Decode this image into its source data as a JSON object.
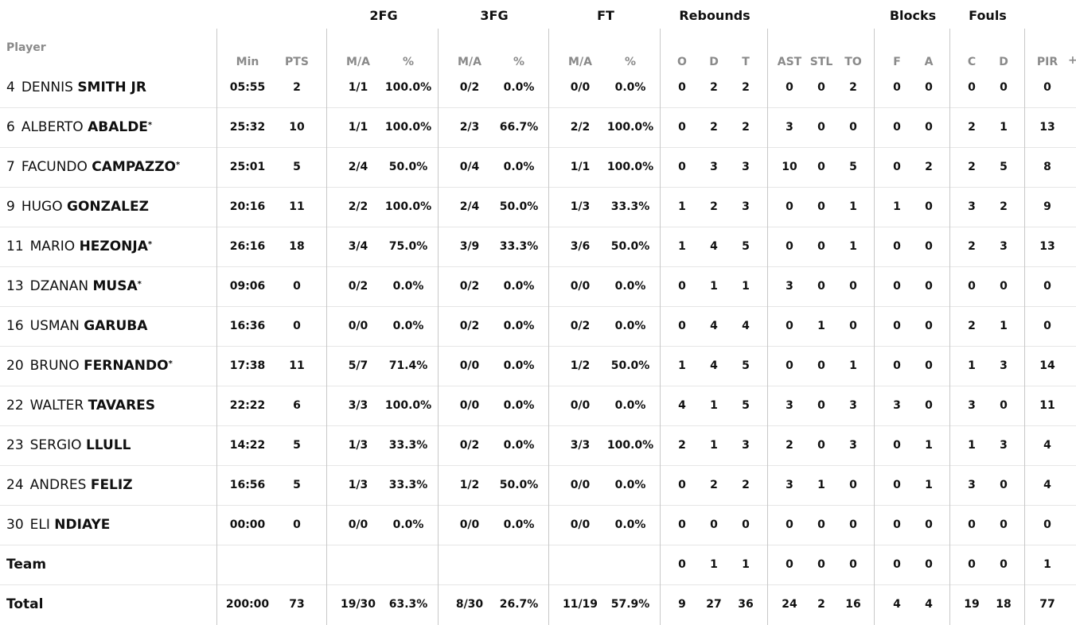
{
  "group_headers": [
    "2FG",
    "3FG",
    "FT",
    "Rebounds",
    "Blocks",
    "Fouls"
  ],
  "player_header": "Player",
  "columns": [
    "Min",
    "PTS",
    "M/A",
    "%",
    "M/A",
    "%",
    "M/A",
    "%",
    "O",
    "D",
    "T",
    "AST",
    "STL",
    "TO",
    "F",
    "A",
    "C",
    "D",
    "PIR"
  ],
  "plus_label": "+",
  "rows": [
    {
      "num": "4",
      "first": "DENNIS",
      "last": "SMITH JR",
      "star": "",
      "stats": [
        "05:55",
        "2",
        "1/1",
        "100.0%",
        "0/2",
        "0.0%",
        "0/0",
        "0.0%",
        "0",
        "2",
        "2",
        "0",
        "0",
        "2",
        "0",
        "0",
        "0",
        "0",
        "0"
      ]
    },
    {
      "num": "6",
      "first": "ALBERTO",
      "last": "ABALDE",
      "star": "*",
      "stats": [
        "25:32",
        "10",
        "1/1",
        "100.0%",
        "2/3",
        "66.7%",
        "2/2",
        "100.0%",
        "0",
        "2",
        "2",
        "3",
        "0",
        "0",
        "0",
        "0",
        "2",
        "1",
        "13"
      ]
    },
    {
      "num": "7",
      "first": "FACUNDO",
      "last": "CAMPAZZO",
      "star": "*",
      "stats": [
        "25:01",
        "5",
        "2/4",
        "50.0%",
        "0/4",
        "0.0%",
        "1/1",
        "100.0%",
        "0",
        "3",
        "3",
        "10",
        "0",
        "5",
        "0",
        "2",
        "2",
        "5",
        "8"
      ]
    },
    {
      "num": "9",
      "first": "HUGO",
      "last": "GONZALEZ",
      "star": "",
      "stats": [
        "20:16",
        "11",
        "2/2",
        "100.0%",
        "2/4",
        "50.0%",
        "1/3",
        "33.3%",
        "1",
        "2",
        "3",
        "0",
        "0",
        "1",
        "1",
        "0",
        "3",
        "2",
        "9"
      ]
    },
    {
      "num": "11",
      "first": "MARIO",
      "last": "HEZONJA",
      "star": "*",
      "stats": [
        "26:16",
        "18",
        "3/4",
        "75.0%",
        "3/9",
        "33.3%",
        "3/6",
        "50.0%",
        "1",
        "4",
        "5",
        "0",
        "0",
        "1",
        "0",
        "0",
        "2",
        "3",
        "13"
      ]
    },
    {
      "num": "13",
      "first": "DZANAN",
      "last": "MUSA",
      "star": "*",
      "stats": [
        "09:06",
        "0",
        "0/2",
        "0.0%",
        "0/2",
        "0.0%",
        "0/0",
        "0.0%",
        "0",
        "1",
        "1",
        "3",
        "0",
        "0",
        "0",
        "0",
        "0",
        "0",
        "0"
      ]
    },
    {
      "num": "16",
      "first": "USMAN",
      "last": "GARUBA",
      "star": "",
      "stats": [
        "16:36",
        "0",
        "0/0",
        "0.0%",
        "0/2",
        "0.0%",
        "0/2",
        "0.0%",
        "0",
        "4",
        "4",
        "0",
        "1",
        "0",
        "0",
        "0",
        "2",
        "1",
        "0"
      ]
    },
    {
      "num": "20",
      "first": "BRUNO",
      "last": "FERNANDO",
      "star": "*",
      "stats": [
        "17:38",
        "11",
        "5/7",
        "71.4%",
        "0/0",
        "0.0%",
        "1/2",
        "50.0%",
        "1",
        "4",
        "5",
        "0",
        "0",
        "1",
        "0",
        "0",
        "1",
        "3",
        "14"
      ]
    },
    {
      "num": "22",
      "first": "WALTER",
      "last": "TAVARES",
      "star": "",
      "stats": [
        "22:22",
        "6",
        "3/3",
        "100.0%",
        "0/0",
        "0.0%",
        "0/0",
        "0.0%",
        "4",
        "1",
        "5",
        "3",
        "0",
        "3",
        "3",
        "0",
        "3",
        "0",
        "11"
      ]
    },
    {
      "num": "23",
      "first": "SERGIO",
      "last": "LLULL",
      "star": "",
      "stats": [
        "14:22",
        "5",
        "1/3",
        "33.3%",
        "0/2",
        "0.0%",
        "3/3",
        "100.0%",
        "2",
        "1",
        "3",
        "2",
        "0",
        "3",
        "0",
        "1",
        "1",
        "3",
        "4"
      ]
    },
    {
      "num": "24",
      "first": "ANDRES",
      "last": "FELIZ",
      "star": "",
      "stats": [
        "16:56",
        "5",
        "1/3",
        "33.3%",
        "1/2",
        "50.0%",
        "0/0",
        "0.0%",
        "0",
        "2",
        "2",
        "3",
        "1",
        "0",
        "0",
        "1",
        "3",
        "0",
        "4"
      ]
    },
    {
      "num": "30",
      "first": "ELI",
      "last": "NDIAYE",
      "star": "",
      "stats": [
        "00:00",
        "0",
        "0/0",
        "0.0%",
        "0/0",
        "0.0%",
        "0/0",
        "0.0%",
        "0",
        "0",
        "0",
        "0",
        "0",
        "0",
        "0",
        "0",
        "0",
        "0",
        "0"
      ]
    }
  ],
  "team_row": {
    "label": "Team",
    "stats": [
      "",
      "",
      "",
      "",
      "",
      "",
      "",
      "",
      "0",
      "1",
      "1",
      "0",
      "0",
      "0",
      "0",
      "0",
      "0",
      "0",
      "1"
    ]
  },
  "total_row": {
    "label": "Total",
    "stats": [
      "200:00",
      "73",
      "19/30",
      "63.3%",
      "8/30",
      "26.7%",
      "11/19",
      "57.9%",
      "9",
      "27",
      "36",
      "24",
      "2",
      "16",
      "4",
      "4",
      "19",
      "18",
      "77"
    ]
  }
}
